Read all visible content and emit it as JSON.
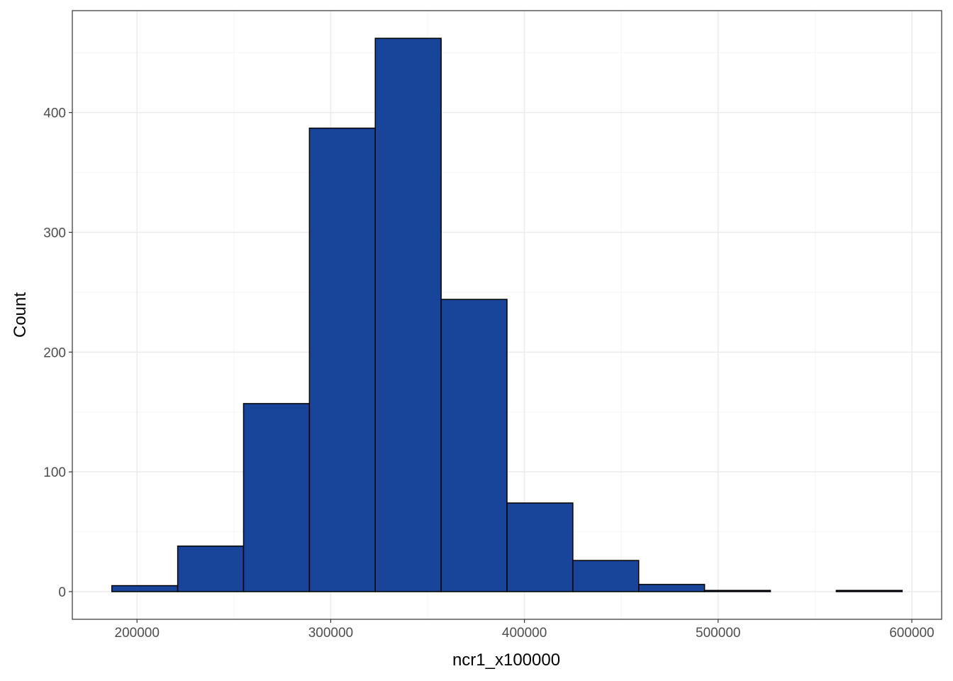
{
  "colors": {
    "bar_fill": "#18449a",
    "bar_stroke": "#000000",
    "grid_major": "#ebebeb",
    "grid_minor": "#f5f5f5",
    "panel_border": "#333333"
  },
  "chart_data": {
    "type": "bar",
    "subtype": "histogram",
    "title": "",
    "xlabel": "ncr1_x100000",
    "ylabel": "Count",
    "bin_width": 34000,
    "bins": [
      {
        "x_start": 187000,
        "x_end": 221000,
        "count": 5
      },
      {
        "x_start": 221000,
        "x_end": 255000,
        "count": 38
      },
      {
        "x_start": 255000,
        "x_end": 289000,
        "count": 157
      },
      {
        "x_start": 289000,
        "x_end": 323000,
        "count": 387
      },
      {
        "x_start": 323000,
        "x_end": 357000,
        "count": 462
      },
      {
        "x_start": 357000,
        "x_end": 391000,
        "count": 244
      },
      {
        "x_start": 391000,
        "x_end": 425000,
        "count": 74
      },
      {
        "x_start": 425000,
        "x_end": 459000,
        "count": 26
      },
      {
        "x_start": 459000,
        "x_end": 493000,
        "count": 6
      },
      {
        "x_start": 493000,
        "x_end": 527000,
        "count": 1
      },
      {
        "x_start": 527000,
        "x_end": 561000,
        "count": 0
      },
      {
        "x_start": 561000,
        "x_end": 595000,
        "count": 1
      }
    ],
    "xlim": [
      166600,
      615400
    ],
    "ylim": [
      -23.1,
      485.1
    ],
    "x_ticks": [
      200000,
      300000,
      400000,
      500000,
      600000
    ],
    "x_tick_labels": [
      "200000",
      "300000",
      "400000",
      "500000",
      "600000"
    ],
    "x_minor_ticks": [
      250000,
      350000,
      450000,
      550000
    ],
    "y_ticks": [
      0,
      100,
      200,
      300,
      400
    ],
    "y_tick_labels": [
      "0",
      "100",
      "200",
      "300",
      "400"
    ],
    "y_minor_ticks": [
      50,
      150,
      250,
      350,
      450
    ],
    "grid": true,
    "legend": "none",
    "theme": "bw"
  }
}
